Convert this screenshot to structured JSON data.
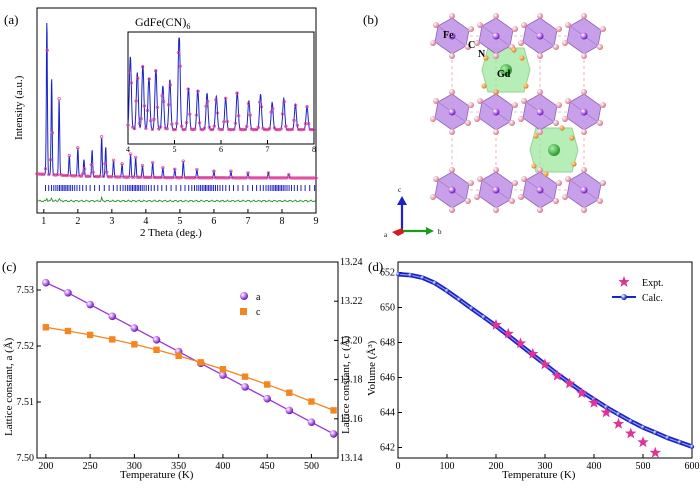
{
  "panels": {
    "a": {
      "label": "(a)",
      "compound": "GdFe(CN)",
      "compound_sub": "6",
      "xlabel": "2 Theta (deg.)",
      "ylabel": "Intensity (a.u.)",
      "xticks": [
        "1",
        "2",
        "3",
        "4",
        "5",
        "6",
        "7",
        "8",
        "9"
      ],
      "inset_xticks": [
        "4",
        "5",
        "6",
        "7",
        "8"
      ]
    },
    "b": {
      "label": "(b)",
      "atoms": {
        "fe": "Fe",
        "c": "C",
        "n": "N",
        "gd": "Gd"
      },
      "axes": {
        "a": "a",
        "b": "b",
        "c": "c"
      }
    },
    "c": {
      "label": "(c)"
    },
    "d": {
      "label": "(d)"
    }
  },
  "colors": {
    "purple": "#9b30d9",
    "orange": "#f5861f",
    "pink": "#e8489a",
    "blue": "#1b22c8",
    "green": "#1f8a1f",
    "magenta": "#e0339a"
  },
  "chart_data": [
    {
      "panel": "c",
      "type": "line",
      "xlabel": "Temperature (K)",
      "ylabel": "Lattice constant, a (Å)",
      "ylabel_right": "Lattice constant, c (Å)",
      "xlim": [
        190,
        530
      ],
      "ylim": [
        7.5,
        7.535
      ],
      "ylim_right": [
        13.14,
        13.24
      ],
      "xticks": [
        "200",
        "250",
        "300",
        "350",
        "400",
        "450",
        "500"
      ],
      "yticks": [
        "7.50",
        "7.51",
        "7.52",
        "7.53"
      ],
      "yticks_right": [
        "13.14",
        "13.16",
        "13.18",
        "13.20",
        "13.22",
        "13.24"
      ],
      "series": [
        {
          "name": "a",
          "axis": "left",
          "marker": "circle",
          "x": [
            200,
            225,
            250,
            275,
            300,
            325,
            350,
            375,
            400,
            425,
            450,
            475,
            500,
            525
          ],
          "values": [
            7.5313,
            7.5295,
            7.5274,
            7.5253,
            7.5232,
            7.5211,
            7.519,
            7.5169,
            7.5148,
            7.5127,
            7.5106,
            7.5085,
            7.5064,
            7.5043
          ]
        },
        {
          "name": "c",
          "axis": "right",
          "marker": "square",
          "x": [
            200,
            225,
            250,
            275,
            300,
            325,
            350,
            375,
            400,
            425,
            450,
            475,
            500,
            525
          ],
          "values": [
            13.2067,
            13.2048,
            13.2028,
            13.2005,
            13.198,
            13.1952,
            13.1921,
            13.1888,
            13.1853,
            13.1815,
            13.1775,
            13.1733,
            13.1688,
            13.1643
          ]
        }
      ]
    },
    {
      "panel": "d",
      "type": "line",
      "xlabel": "Temperature (K)",
      "ylabel": "Volume (Å³)",
      "xlim": [
        0,
        600
      ],
      "ylim": [
        641.4,
        652.6
      ],
      "xticks": [
        "0",
        "100",
        "200",
        "300",
        "400",
        "500",
        "600"
      ],
      "yticks": [
        "642",
        "644",
        "646",
        "648",
        "650",
        "652"
      ],
      "series": [
        {
          "name": "Expt.",
          "marker": "star",
          "x": [
            200,
            225,
            250,
            275,
            300,
            325,
            350,
            375,
            400,
            425,
            450,
            475,
            500,
            525
          ],
          "values": [
            649.0,
            648.5,
            647.95,
            647.35,
            646.75,
            646.1,
            645.65,
            645.1,
            644.55,
            644.0,
            643.35,
            642.8,
            642.3,
            641.7
          ]
        },
        {
          "name": "Calc.",
          "marker": "circle",
          "x": [
            0,
            25,
            50,
            75,
            100,
            125,
            150,
            175,
            200,
            225,
            250,
            275,
            300,
            325,
            350,
            375,
            400,
            425,
            450,
            475,
            500,
            525,
            550,
            575,
            600
          ],
          "values": [
            651.9,
            651.85,
            651.7,
            651.4,
            650.95,
            650.45,
            649.95,
            649.45,
            648.95,
            648.4,
            647.85,
            647.3,
            646.75,
            646.2,
            645.7,
            645.2,
            644.75,
            644.3,
            643.9,
            643.5,
            643.15,
            642.85,
            642.55,
            642.3,
            642.05
          ]
        }
      ]
    },
    {
      "panel": "a",
      "type": "line",
      "xlim": [
        0.8,
        9
      ],
      "ylim": [
        0,
        100
      ],
      "peaks": [
        {
          "x": 1.09,
          "h": 92
        },
        {
          "x": 1.23,
          "h": 58
        },
        {
          "x": 1.45,
          "h": 46
        },
        {
          "x": 1.75,
          "h": 12
        },
        {
          "x": 2.0,
          "h": 17
        },
        {
          "x": 2.18,
          "h": 10
        },
        {
          "x": 2.42,
          "h": 16
        },
        {
          "x": 2.7,
          "h": 24
        },
        {
          "x": 2.82,
          "h": 18
        },
        {
          "x": 3.05,
          "h": 10
        },
        {
          "x": 3.3,
          "h": 8
        },
        {
          "x": 3.55,
          "h": 14
        },
        {
          "x": 3.7,
          "h": 12
        },
        {
          "x": 3.9,
          "h": 7
        },
        {
          "x": 4.2,
          "h": 9
        },
        {
          "x": 4.5,
          "h": 6
        },
        {
          "x": 4.85,
          "h": 5
        },
        {
          "x": 5.1,
          "h": 10
        },
        {
          "x": 5.5,
          "h": 5
        },
        {
          "x": 6.0,
          "h": 4
        },
        {
          "x": 6.5,
          "h": 4
        },
        {
          "x": 7.0,
          "h": 3
        },
        {
          "x": 7.6,
          "h": 3
        },
        {
          "x": 8.2,
          "h": 2
        }
      ],
      "inset_xlim": [
        4,
        8
      ],
      "inset_peaks": [
        {
          "x": 4.05,
          "h": 70
        },
        {
          "x": 4.2,
          "h": 55
        },
        {
          "x": 4.32,
          "h": 62
        },
        {
          "x": 4.45,
          "h": 50
        },
        {
          "x": 4.6,
          "h": 58
        },
        {
          "x": 4.75,
          "h": 42
        },
        {
          "x": 4.9,
          "h": 48
        },
        {
          "x": 5.1,
          "h": 95
        },
        {
          "x": 5.3,
          "h": 40
        },
        {
          "x": 5.5,
          "h": 38
        },
        {
          "x": 5.7,
          "h": 35
        },
        {
          "x": 5.9,
          "h": 32
        },
        {
          "x": 6.1,
          "h": 30
        },
        {
          "x": 6.35,
          "h": 36
        },
        {
          "x": 6.6,
          "h": 28
        },
        {
          "x": 6.85,
          "h": 34
        },
        {
          "x": 7.1,
          "h": 26
        },
        {
          "x": 7.35,
          "h": 30
        },
        {
          "x": 7.6,
          "h": 24
        },
        {
          "x": 7.85,
          "h": 22
        }
      ]
    }
  ]
}
